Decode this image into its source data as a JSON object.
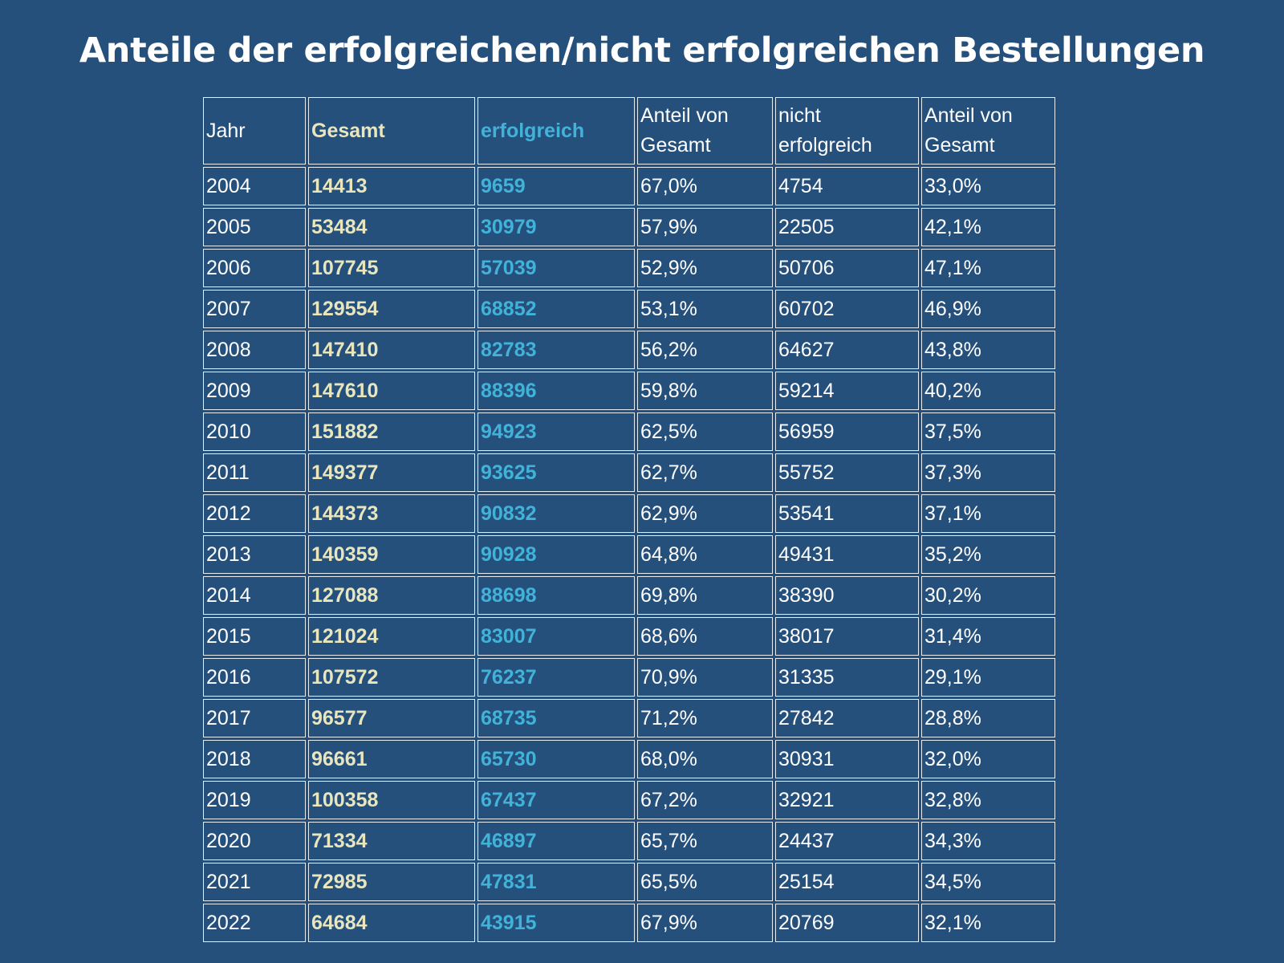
{
  "title": "Anteile der erfolgreichen/nicht erfolgreichen Bestellungen",
  "colors": {
    "background": "#25507c",
    "gesamt": "#e9e6bd",
    "erfolgreich": "#43b2d9",
    "text": "#ffffff",
    "border": "#e6edf4"
  },
  "chart_data": {
    "type": "table",
    "title": "Anteile der erfolgreichen/nicht erfolgreichen Bestellungen",
    "columns": [
      "Jahr",
      "Gesamt",
      "erfolgreich",
      "Anteil von Gesamt",
      "nicht erfolgreich",
      "Anteil von Gesamt"
    ],
    "rows": [
      [
        "2004",
        "14413",
        "9659",
        "67,0%",
        "4754",
        "33,0%"
      ],
      [
        "2005",
        "53484",
        "30979",
        "57,9%",
        "22505",
        "42,1%"
      ],
      [
        "2006",
        "107745",
        "57039",
        "52,9%",
        "50706",
        "47,1%"
      ],
      [
        "2007",
        "129554",
        "68852",
        "53,1%",
        "60702",
        "46,9%"
      ],
      [
        "2008",
        "147410",
        "82783",
        "56,2%",
        "64627",
        "43,8%"
      ],
      [
        "2009",
        "147610",
        "88396",
        "59,8%",
        "59214",
        "40,2%"
      ],
      [
        "2010",
        "151882",
        "94923",
        "62,5%",
        "56959",
        "37,5%"
      ],
      [
        "2011",
        "149377",
        "93625",
        "62,7%",
        "55752",
        "37,3%"
      ],
      [
        "2012",
        "144373",
        "90832",
        "62,9%",
        "53541",
        "37,1%"
      ],
      [
        "2013",
        "140359",
        "90928",
        "64,8%",
        "49431",
        "35,2%"
      ],
      [
        "2014",
        "127088",
        "88698",
        "69,8%",
        "38390",
        "30,2%"
      ],
      [
        "2015",
        "121024",
        "83007",
        "68,6%",
        "38017",
        "31,4%"
      ],
      [
        "2016",
        "107572",
        "76237",
        "70,9%",
        "31335",
        "29,1%"
      ],
      [
        "2017",
        "96577",
        "68735",
        "71,2%",
        "27842",
        "28,8%"
      ],
      [
        "2018",
        "96661",
        "65730",
        "68,0%",
        "30931",
        "32,0%"
      ],
      [
        "2019",
        "100358",
        "67437",
        "67,2%",
        "32921",
        "32,8%"
      ],
      [
        "2020",
        "71334",
        "46897",
        "65,7%",
        "24437",
        "34,3%"
      ],
      [
        "2021",
        "72985",
        "47831",
        "65,5%",
        "25154",
        "34,5%"
      ],
      [
        "2022",
        "64684",
        "43915",
        "67,9%",
        "20769",
        "32,1%"
      ]
    ]
  }
}
